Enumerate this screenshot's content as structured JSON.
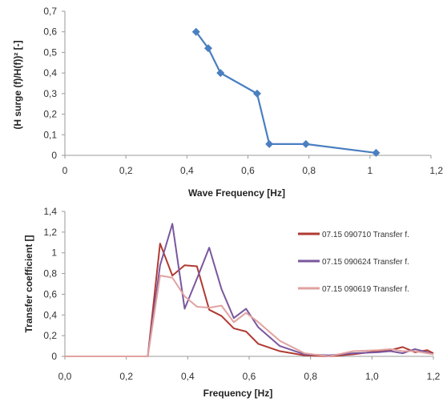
{
  "chart_data": [
    {
      "type": "line",
      "xlabel": "Wave Frequency [Hz]",
      "ylabel": "(H surge (f)/H(f))² [-]",
      "xlim": [
        0,
        1.2
      ],
      "ylim": [
        0,
        0.7
      ],
      "x_ticks": [
        "0",
        "0,2",
        "0,4",
        "0,6",
        "0,8",
        "1",
        "1,2"
      ],
      "y_ticks": [
        "0",
        "0,1",
        "0,2",
        "0,3",
        "0,4",
        "0,5",
        "0,6",
        "0,7"
      ],
      "grid": false,
      "color": "#4a7fc1",
      "series": [
        {
          "x": [
            0.43,
            0.47,
            0.51,
            0.63,
            0.67,
            0.79,
            1.02
          ],
          "y": [
            0.6,
            0.52,
            0.4,
            0.3,
            0.055,
            0.055,
            0.012
          ]
        }
      ]
    },
    {
      "type": "line",
      "xlabel": "Frequency [Hz]",
      "ylabel": "Transfer coefficient []",
      "xlim": [
        0,
        1.2
      ],
      "ylim": [
        0,
        1.4
      ],
      "x_ticks": [
        "0,0",
        "0,2",
        "0,4",
        "0,6",
        "0,8",
        "1,0",
        "1,2"
      ],
      "y_ticks": [
        "0",
        "0,2",
        "0,4",
        "0,6",
        "0,8",
        "1",
        "1,2",
        "1,4"
      ],
      "grid": false,
      "legend": "right",
      "series": [
        {
          "name": "07.15 090710 Transfer f.",
          "color": "#b03a32",
          "x": [
            0.0,
            0.27,
            0.31,
            0.35,
            0.39,
            0.43,
            0.47,
            0.51,
            0.55,
            0.59,
            0.63,
            0.7,
            0.78,
            0.86,
            0.94,
            1.02,
            1.06,
            1.1,
            1.14,
            1.18,
            1.2
          ],
          "y": [
            0.0,
            0.0,
            1.09,
            0.78,
            0.88,
            0.87,
            0.45,
            0.39,
            0.27,
            0.24,
            0.12,
            0.05,
            0.01,
            0.0,
            0.02,
            0.05,
            0.06,
            0.09,
            0.04,
            0.06,
            0.03
          ]
        },
        {
          "name": "07.15 090624 Transfer f.",
          "color": "#7a579e",
          "x": [
            0.0,
            0.27,
            0.31,
            0.35,
            0.39,
            0.43,
            0.47,
            0.51,
            0.55,
            0.59,
            0.63,
            0.7,
            0.78,
            0.86,
            0.94,
            1.02,
            1.06,
            1.1,
            1.14,
            1.18,
            1.2
          ],
          "y": [
            0.0,
            0.0,
            0.88,
            1.28,
            0.46,
            0.75,
            1.05,
            0.65,
            0.37,
            0.46,
            0.28,
            0.1,
            0.02,
            0.01,
            0.03,
            0.04,
            0.05,
            0.03,
            0.07,
            0.04,
            0.02
          ]
        },
        {
          "name": "07.15 090619 Transfer f.",
          "color": "#e0a2a0",
          "x": [
            0.0,
            0.27,
            0.31,
            0.35,
            0.39,
            0.43,
            0.47,
            0.51,
            0.55,
            0.59,
            0.63,
            0.7,
            0.78,
            0.86,
            0.94,
            1.02,
            1.06,
            1.1,
            1.14,
            1.18,
            1.2
          ],
          "y": [
            0.0,
            0.0,
            0.78,
            0.76,
            0.58,
            0.48,
            0.47,
            0.49,
            0.33,
            0.42,
            0.33,
            0.15,
            0.03,
            0.0,
            0.05,
            0.06,
            0.07,
            0.05,
            0.05,
            0.03,
            0.02
          ]
        }
      ]
    }
  ]
}
